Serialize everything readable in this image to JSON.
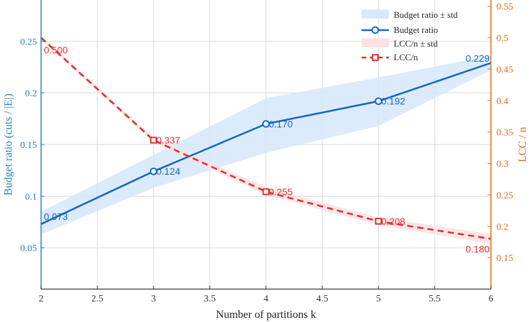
{
  "chart_data": {
    "type": "line",
    "x": [
      2,
      3,
      4,
      5,
      6
    ],
    "xlabel": "Number of partitions k",
    "xlim": [
      2,
      6
    ],
    "xticks": [
      "2",
      "2.5",
      "3",
      "3.5",
      "4",
      "4.5",
      "5",
      "5.5",
      "6"
    ],
    "left_axis": {
      "label": "Budget ratio (cuts / |E|)",
      "ylim": [
        0.01,
        0.29
      ],
      "ticks": [
        "0.05",
        "0.1",
        "0.15",
        "0.2",
        "0.25"
      ],
      "color": "#2a7fc0"
    },
    "right_axis": {
      "label": "LCC / n",
      "ylim": [
        0.1,
        0.56
      ],
      "ticks": [
        "0.15",
        "0.2",
        "0.25",
        "0.3",
        "0.35",
        "0.4",
        "0.45",
        "0.5",
        "0.55"
      ],
      "color": "#e06a1a"
    },
    "series": [
      {
        "name": "Budget ratio",
        "axis": "left",
        "color": "#1565c0",
        "marker": "circle",
        "line": "solid",
        "x": [
          2,
          3,
          4,
          5,
          6
        ],
        "y": [
          0.073,
          0.124,
          0.17,
          0.192,
          0.229
        ],
        "labels": [
          "0.073",
          "0.124",
          "0.170",
          "0.192",
          "0.229"
        ]
      },
      {
        "name": "LCC/n",
        "axis": "right",
        "color": "#e03030",
        "marker": "square",
        "line": "dashed",
        "x": [
          2,
          3,
          4,
          5,
          6
        ],
        "y": [
          0.5,
          0.337,
          0.255,
          0.208,
          0.18
        ],
        "labels": [
          "0.500",
          "0.337",
          "0.255",
          "0.208",
          "0.180"
        ]
      }
    ],
    "bands": [
      {
        "name": "Budget ratio ± std",
        "axis": "left",
        "color": "#d6e8fb",
        "x": [
          2,
          3,
          4,
          5,
          6
        ],
        "lower": [
          0.063,
          0.108,
          0.142,
          0.168,
          0.222
        ],
        "upper": [
          0.085,
          0.14,
          0.195,
          0.215,
          0.236
        ]
      },
      {
        "name": "LCC/n ± std",
        "axis": "right",
        "color": "#fbe1e1",
        "x": [
          2,
          3,
          4,
          5,
          6
        ],
        "lower": [
          0.497,
          0.333,
          0.25,
          0.202,
          0.172
        ],
        "upper": [
          0.503,
          0.341,
          0.262,
          0.214,
          0.188
        ]
      }
    ],
    "grid": true,
    "legend": "top-right"
  }
}
